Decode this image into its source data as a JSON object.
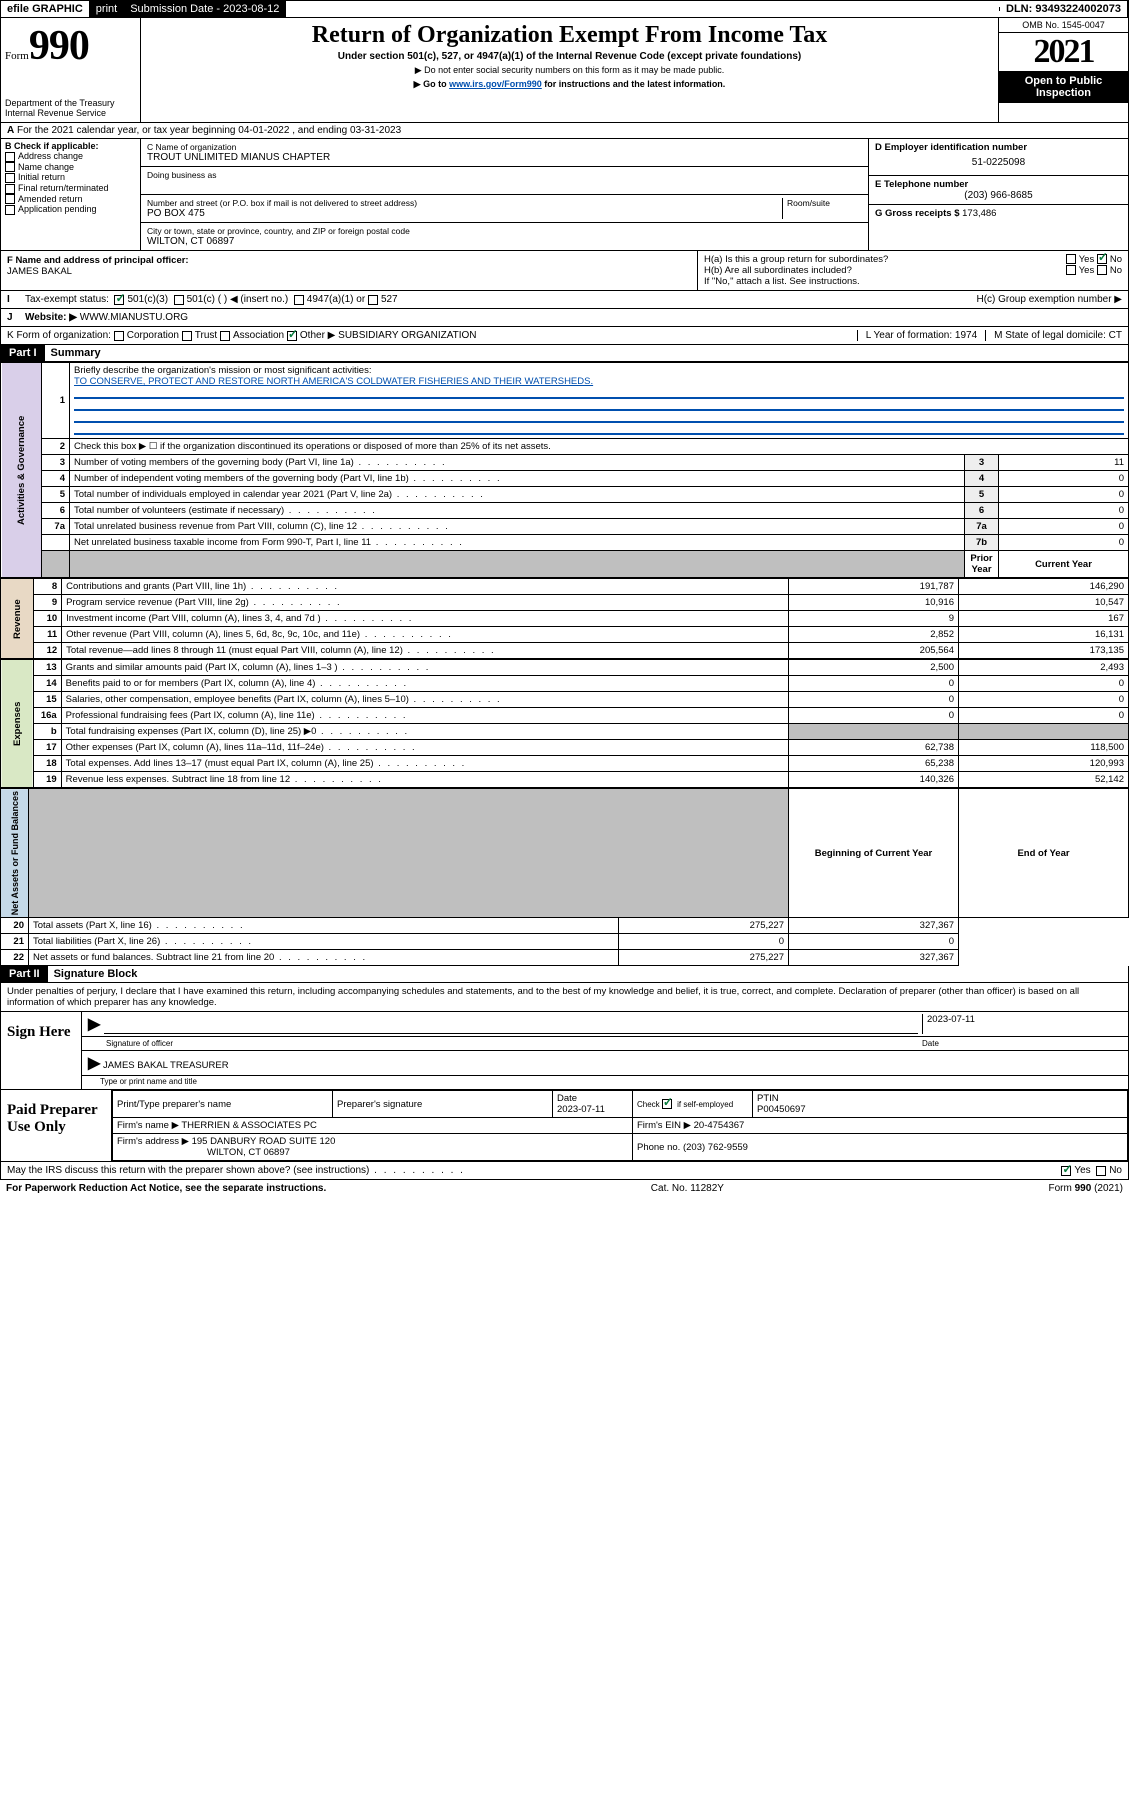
{
  "topbar": {
    "efile": "efile GRAPHIC",
    "print": "print",
    "subm_lbl": "Submission Date - ",
    "subm_date": "2023-08-12",
    "dln_lbl": "DLN: ",
    "dln": "93493224002073"
  },
  "header": {
    "form_word": "Form",
    "form_num": "990",
    "dept": "Department of the Treasury",
    "irs": "Internal Revenue Service",
    "title": "Return of Organization Exempt From Income Tax",
    "sub1": "Under section 501(c), 527, or 4947(a)(1) of the Internal Revenue Code (except private foundations)",
    "sub2": "▶ Do not enter social security numbers on this form as it may be made public.",
    "sub3_pre": "▶ Go to ",
    "sub3_link": "www.irs.gov/Form990",
    "sub3_post": " for instructions and the latest information.",
    "omb": "OMB No. 1545-0047",
    "year": "2021",
    "open": "Open to Public Inspection"
  },
  "A": {
    "text": "For the 2021 calendar year, or tax year beginning 04-01-2022     , and ending 03-31-2023"
  },
  "B": {
    "lbl": "B Check if applicable:",
    "items": [
      "Address change",
      "Name change",
      "Initial return",
      "Final return/terminated",
      "Amended return",
      "Application pending"
    ]
  },
  "C": {
    "name_lbl": "C Name of organization",
    "name": "TROUT UNLIMITED MIANUS CHAPTER",
    "dba_lbl": "Doing business as",
    "addr_lbl": "Number and street (or P.O. box if mail is not delivered to street address)",
    "room_lbl": "Room/suite",
    "addr": "PO BOX 475",
    "city_lbl": "City or town, state or province, country, and ZIP or foreign postal code",
    "city": "WILTON, CT  06897"
  },
  "D": {
    "lbl": "D Employer identification number",
    "val": "51-0225098"
  },
  "E": {
    "lbl": "E Telephone number",
    "val": "(203) 966-8685"
  },
  "G": {
    "lbl": "G Gross receipts $ ",
    "val": "173,486"
  },
  "F": {
    "lbl": "F  Name and address of principal officer:",
    "val": "JAMES BAKAL"
  },
  "H": {
    "a": "H(a)  Is this a group return for subordinates?",
    "b": "H(b)  Are all subordinates included?",
    "bnote": "If \"No,\" attach a list. See instructions.",
    "c": "H(c)  Group exemption number ▶",
    "yes": "Yes",
    "no": "No"
  },
  "I": {
    "lbl": "Tax-exempt status:",
    "opts": [
      "501(c)(3)",
      "501(c) (  ) ◀ (insert no.)",
      "4947(a)(1) or",
      "527"
    ]
  },
  "J": {
    "lbl": "Website: ▶",
    "val": "WWW.MIANUSTU.ORG"
  },
  "K": {
    "lbl": "K Form of organization:",
    "opts": [
      "Corporation",
      "Trust",
      "Association",
      "Other ▶"
    ],
    "other": "SUBSIDIARY ORGANIZATION"
  },
  "L": {
    "lbl": "L Year of formation: ",
    "val": "1974"
  },
  "M": {
    "lbl": "M State of legal domicile: ",
    "val": "CT"
  },
  "partI": {
    "hdr": "Part I",
    "title": "Summary"
  },
  "summary": {
    "l1a": "Briefly describe the organization's mission or most significant activities:",
    "l1b": "TO CONSERVE, PROTECT AND RESTORE NORTH AMERICA'S COLDWATER FISHERIES AND THEIR WATERSHEDS.",
    "l2": "Check this box ▶ ☐  if the organization discontinued its operations or disposed of more than 25% of its net assets.",
    "rows_gov": [
      {
        "n": "3",
        "t": "Number of voting members of the governing body (Part VI, line 1a)",
        "box": "3",
        "v": "11"
      },
      {
        "n": "4",
        "t": "Number of independent voting members of the governing body (Part VI, line 1b)",
        "box": "4",
        "v": "0"
      },
      {
        "n": "5",
        "t": "Total number of individuals employed in calendar year 2021 (Part V, line 2a)",
        "box": "5",
        "v": "0"
      },
      {
        "n": "6",
        "t": "Total number of volunteers (estimate if necessary)",
        "box": "6",
        "v": "0"
      },
      {
        "n": "7a",
        "t": "Total unrelated business revenue from Part VIII, column (C), line 12",
        "box": "7a",
        "v": "0"
      },
      {
        "n": "",
        "t": "Net unrelated business taxable income from Form 990-T, Part I, line 11",
        "box": "7b",
        "v": "0"
      }
    ],
    "col_py": "Prior Year",
    "col_cy": "Current Year",
    "rows_rev": [
      {
        "n": "8",
        "t": "Contributions and grants (Part VIII, line 1h)",
        "py": "191,787",
        "cy": "146,290"
      },
      {
        "n": "9",
        "t": "Program service revenue (Part VIII, line 2g)",
        "py": "10,916",
        "cy": "10,547"
      },
      {
        "n": "10",
        "t": "Investment income (Part VIII, column (A), lines 3, 4, and 7d )",
        "py": "9",
        "cy": "167"
      },
      {
        "n": "11",
        "t": "Other revenue (Part VIII, column (A), lines 5, 6d, 8c, 9c, 10c, and 11e)",
        "py": "2,852",
        "cy": "16,131"
      },
      {
        "n": "12",
        "t": "Total revenue—add lines 8 through 11 (must equal Part VIII, column (A), line 12)",
        "py": "205,564",
        "cy": "173,135"
      }
    ],
    "rows_exp": [
      {
        "n": "13",
        "t": "Grants and similar amounts paid (Part IX, column (A), lines 1–3 )",
        "py": "2,500",
        "cy": "2,493"
      },
      {
        "n": "14",
        "t": "Benefits paid to or for members (Part IX, column (A), line 4)",
        "py": "0",
        "cy": "0"
      },
      {
        "n": "15",
        "t": "Salaries, other compensation, employee benefits (Part IX, column (A), lines 5–10)",
        "py": "0",
        "cy": "0"
      },
      {
        "n": "16a",
        "t": "Professional fundraising fees (Part IX, column (A), line 11e)",
        "py": "0",
        "cy": "0"
      },
      {
        "n": "b",
        "t": "Total fundraising expenses (Part IX, column (D), line 25) ▶0",
        "py": "",
        "cy": "",
        "grey": true
      },
      {
        "n": "17",
        "t": "Other expenses (Part IX, column (A), lines 11a–11d, 11f–24e)",
        "py": "62,738",
        "cy": "118,500"
      },
      {
        "n": "18",
        "t": "Total expenses. Add lines 13–17 (must equal Part IX, column (A), line 25)",
        "py": "65,238",
        "cy": "120,993"
      },
      {
        "n": "19",
        "t": "Revenue less expenses. Subtract line 18 from line 12",
        "py": "140,326",
        "cy": "52,142"
      }
    ],
    "col_boc": "Beginning of Current Year",
    "col_eoy": "End of Year",
    "rows_net": [
      {
        "n": "20",
        "t": "Total assets (Part X, line 16)",
        "py": "275,227",
        "cy": "327,367"
      },
      {
        "n": "21",
        "t": "Total liabilities (Part X, line 26)",
        "py": "0",
        "cy": "0"
      },
      {
        "n": "22",
        "t": "Net assets or fund balances. Subtract line 21 from line 20",
        "py": "275,227",
        "cy": "327,367"
      }
    ],
    "tabs": {
      "gov": "Activities & Governance",
      "rev": "Revenue",
      "exp": "Expenses",
      "net": "Net Assets or Fund Balances"
    }
  },
  "partII": {
    "hdr": "Part II",
    "title": "Signature Block",
    "decl": "Under penalties of perjury, I declare that I have examined this return, including accompanying schedules and statements, and to the best of my knowledge and belief, it is true, correct, and complete. Declaration of preparer (other than officer) is based on all information of which preparer has any knowledge."
  },
  "sign": {
    "here": "Sign Here",
    "sig_lbl": "Signature of officer",
    "date_lbl": "Date",
    "date": "2023-07-11",
    "name": "JAMES BAKAL  TREASURER",
    "name_lbl": "Type or print name and title"
  },
  "paid": {
    "lbl": "Paid Preparer Use Only",
    "h": [
      "Print/Type preparer's name",
      "Preparer's signature",
      "Date",
      "",
      "PTIN"
    ],
    "date": "2023-07-11",
    "self": "Check ☑ if self-employed",
    "ptin": "P00450697",
    "firm_lbl": "Firm's name   ▶ ",
    "firm": "THERRIEN & ASSOCIATES PC",
    "ein_lbl": "Firm's EIN ▶ ",
    "ein": "20-4754367",
    "addr_lbl": "Firm's address ▶ ",
    "addr1": "195 DANBURY ROAD SUITE 120",
    "addr2": "WILTON, CT  06897",
    "phone_lbl": "Phone no. ",
    "phone": "(203) 762-9559"
  },
  "may": {
    "q": "May the IRS discuss this return with the preparer shown above? (see instructions)",
    "yes": "Yes",
    "no": "No"
  },
  "footer": {
    "pra": "For Paperwork Reduction Act Notice, see the separate instructions.",
    "cat": "Cat. No. 11282Y",
    "form": "Form 990 (2021)"
  }
}
